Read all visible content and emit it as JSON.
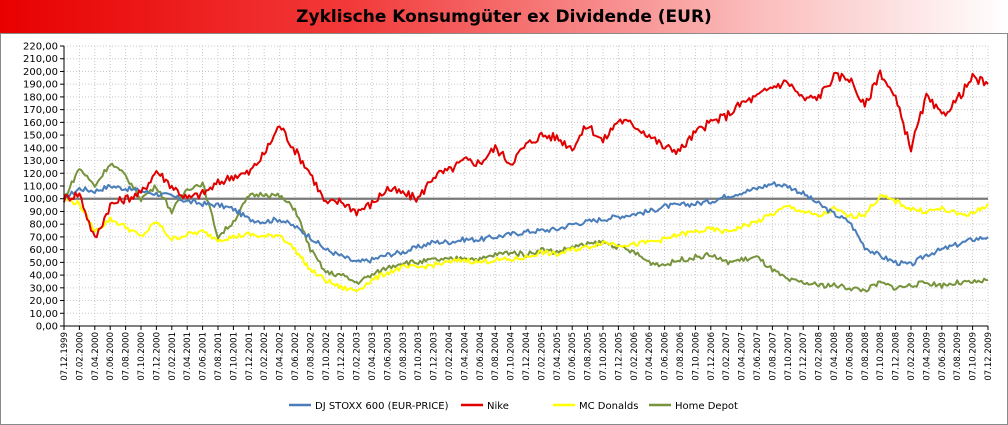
{
  "title": "Zyklische Konsumgüter ex Dividende (EUR)",
  "chart_data": {
    "type": "line",
    "title": "Zyklische Konsumgüter ex Dividende (EUR)",
    "xlabel": "",
    "ylabel": "",
    "ylim": [
      0,
      220
    ],
    "y_ticks": [
      "0,00",
      "10,00",
      "20,00",
      "30,00",
      "40,00",
      "50,00",
      "60,00",
      "70,00",
      "80,00",
      "90,00",
      "100,00",
      "110,00",
      "120,00",
      "130,00",
      "140,00",
      "150,00",
      "160,00",
      "170,00",
      "180,00",
      "190,00",
      "200,00",
      "210,00",
      "220,00"
    ],
    "x_ticks": [
      "07.12.1999",
      "07.02.2000",
      "07.04.2000",
      "07.06.2000",
      "07.08.2000",
      "07.10.2000",
      "07.12.2000",
      "07.02.2001",
      "07.04.2001",
      "07.06.2001",
      "07.08.2001",
      "07.10.2001",
      "07.12.2001",
      "07.02.2002",
      "07.04.2002",
      "07.06.2002",
      "07.08.2002",
      "07.10.2002",
      "07.12.2002",
      "07.02.2003",
      "07.04.2003",
      "07.06.2003",
      "07.08.2003",
      "07.10.2003",
      "07.12.2003",
      "07.02.2004",
      "07.04.2004",
      "07.06.2004",
      "07.08.2004",
      "07.10.2004",
      "07.12.2004",
      "07.02.2005",
      "07.04.2005",
      "07.06.2005",
      "07.08.2005",
      "07.10.2005",
      "07.12.2005",
      "07.02.2006",
      "07.04.2006",
      "07.06.2006",
      "07.08.2006",
      "07.10.2006",
      "07.12.2006",
      "07.02.2007",
      "07.04.2007",
      "07.06.2007",
      "07.08.2007",
      "07.10.2007",
      "07.12.2007",
      "07.02.2008",
      "07.04.2008",
      "07.06.2008",
      "07.08.2008",
      "07.10.2008",
      "07.12.2008",
      "07.02.2009",
      "07.04.2009",
      "07.06.2009",
      "07.08.2009",
      "07.10.2009",
      "07.12.2009"
    ],
    "reference_line": 100,
    "grid": true,
    "legend_position": "bottom",
    "series": [
      {
        "name": "DJ STOXX 600 (EUR-PRICE)",
        "color": "#4a7ebb",
        "values": [
          100,
          108,
          106,
          110,
          108,
          106,
          104,
          102,
          98,
          96,
          95,
          92,
          84,
          82,
          84,
          78,
          70,
          60,
          55,
          50,
          52,
          56,
          58,
          62,
          66,
          66,
          68,
          68,
          70,
          72,
          74,
          75,
          76,
          80,
          82,
          84,
          86,
          88,
          90,
          94,
          95,
          96,
          98,
          102,
          105,
          108,
          112,
          110,
          104,
          96,
          88,
          82,
          62,
          55,
          50,
          48,
          56,
          60,
          64,
          68,
          70
        ]
      },
      {
        "name": "Nike",
        "color": "#e00000",
        "values": [
          100,
          104,
          68,
          95,
          100,
          104,
          122,
          110,
          100,
          104,
          112,
          118,
          120,
          135,
          158,
          138,
          120,
          96,
          98,
          90,
          96,
          108,
          104,
          100,
          118,
          122,
          130,
          128,
          140,
          128,
          142,
          150,
          148,
          140,
          158,
          145,
          162,
          158,
          150,
          140,
          138,
          152,
          160,
          165,
          175,
          180,
          188,
          192,
          178,
          180,
          196,
          195,
          172,
          200,
          178,
          140,
          180,
          165,
          178,
          195,
          190
        ]
      },
      {
        "name": "MC Donalds",
        "color": "#ffff00",
        "values": [
          100,
          96,
          74,
          84,
          78,
          70,
          82,
          68,
          72,
          74,
          68,
          70,
          72,
          70,
          72,
          60,
          44,
          36,
          30,
          28,
          36,
          42,
          46,
          46,
          48,
          50,
          52,
          50,
          52,
          52,
          54,
          58,
          56,
          60,
          62,
          66,
          64,
          64,
          66,
          68,
          72,
          74,
          76,
          74,
          78,
          82,
          88,
          94,
          90,
          86,
          92,
          86,
          88,
          102,
          98,
          92,
          90,
          92,
          88,
          88,
          96
        ]
      },
      {
        "name": "Home Depot",
        "color": "#77933c",
        "values": [
          100,
          124,
          110,
          128,
          118,
          100,
          110,
          90,
          108,
          112,
          70,
          82,
          102,
          104,
          102,
          92,
          60,
          42,
          40,
          34,
          40,
          46,
          50,
          50,
          52,
          52,
          54,
          52,
          56,
          58,
          56,
          60,
          58,
          62,
          64,
          66,
          62,
          58,
          50,
          48,
          52,
          54,
          56,
          50,
          52,
          54,
          44,
          36,
          34,
          32,
          32,
          30,
          28,
          34,
          30,
          32,
          34,
          32,
          34,
          34,
          36
        ]
      }
    ]
  }
}
